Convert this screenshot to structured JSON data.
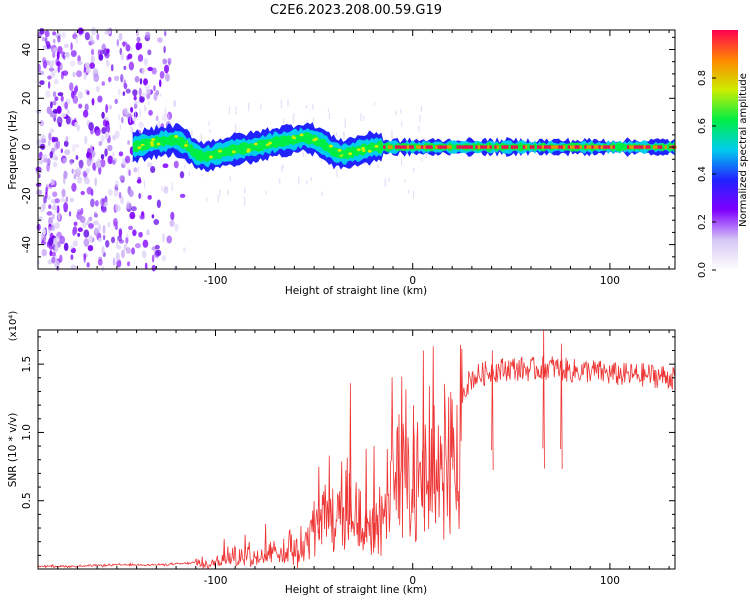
{
  "title": "C2E6.2023.208.00.59.G19",
  "chart_data": [
    {
      "type": "heatmap",
      "xlabel": "Height of straight line (km)",
      "ylabel": "Frequency (Hz)",
      "xlim": [
        -190,
        133
      ],
      "ylim": [
        -50,
        48
      ],
      "xticks": [
        -100,
        0,
        100
      ],
      "yticks": [
        -40,
        -20,
        0,
        20,
        40
      ],
      "colorbar": {
        "label": "Normalized spectral amplitude",
        "range": [
          0,
          1
        ],
        "ticks": [
          0.0,
          0.2,
          0.4,
          0.6,
          0.8
        ],
        "colormap": [
          "#ffffff",
          "#d6c7f5",
          "#7f00ff",
          "#2222ff",
          "#00ccee",
          "#00ee44",
          "#ccee00",
          "#ff8800",
          "#ff0050"
        ]
      },
      "ridge": {
        "x": [
          -142,
          -130,
          -120,
          -115,
          -110,
          -105,
          -100,
          -90,
          -80,
          -70,
          -60,
          -55,
          -50,
          -45,
          -40,
          -35,
          -30,
          -25,
          -20,
          -15,
          -10,
          0,
          20,
          60,
          100,
          133
        ],
        "freq": [
          0,
          2,
          3,
          1,
          -3,
          -4,
          -3,
          -1,
          0,
          2,
          3,
          4,
          3,
          1,
          -2,
          -3,
          -2,
          -1,
          0,
          0,
          0,
          0,
          0,
          0,
          0,
          0
        ]
      },
      "noise_region": {
        "x": [
          -190,
          -115
        ],
        "freq": [
          -50,
          48
        ]
      }
    },
    {
      "type": "line",
      "xlabel": "Height of straight line (km)",
      "ylabel": "SNR (10 * v/v)",
      "yscale_label": "(x10⁴)",
      "xlim": [
        -190,
        133
      ],
      "ylim": [
        0,
        1.75
      ],
      "xticks": [
        -100,
        0,
        100
      ],
      "yticks": [
        0.5,
        1.0,
        1.5
      ],
      "ytick_labels": [
        "0.5",
        "1.0",
        "1.5"
      ],
      "color": "#ee3333",
      "x": [
        -190,
        -170,
        -150,
        -130,
        -115,
        -105,
        -100,
        -95,
        -90,
        -85,
        -80,
        -75,
        -70,
        -65,
        -60,
        -55,
        -50,
        -45,
        -42,
        -38,
        -35,
        -30,
        -25,
        -20,
        -15,
        -10,
        -5,
        0,
        5,
        10,
        15,
        20,
        25,
        30,
        40,
        50,
        60,
        70,
        80,
        90,
        100,
        110,
        120,
        133
      ],
      "y": [
        0.02,
        0.02,
        0.03,
        0.03,
        0.04,
        0.06,
        0.1,
        0.11,
        0.12,
        0.11,
        0.13,
        0.14,
        0.16,
        0.2,
        0.18,
        0.25,
        0.4,
        0.5,
        0.6,
        0.55,
        0.6,
        0.5,
        0.4,
        0.35,
        0.5,
        0.9,
        1.0,
        0.9,
        0.75,
        1.1,
        0.9,
        1.15,
        1.3,
        1.4,
        1.45,
        1.47,
        1.46,
        1.48,
        1.45,
        1.45,
        1.43,
        1.42,
        1.42,
        1.4
      ],
      "spikes": [
        {
          "x": -96,
          "y": 0.22
        },
        {
          "x": -75,
          "y": 0.33
        },
        {
          "x": -48,
          "y": 0.75
        },
        {
          "x": -32,
          "y": 1.36
        },
        {
          "x": -24,
          "y": 0.88
        },
        {
          "x": -20,
          "y": 0.9
        },
        {
          "x": 0,
          "y": 1.2
        },
        {
          "x": 5,
          "y": 1.6
        },
        {
          "x": 10,
          "y": 1.63
        },
        {
          "x": 40,
          "y": 1.6
        },
        {
          "x": 66,
          "y": 1.75
        },
        {
          "x": 75,
          "y": 1.65
        }
      ]
    }
  ]
}
